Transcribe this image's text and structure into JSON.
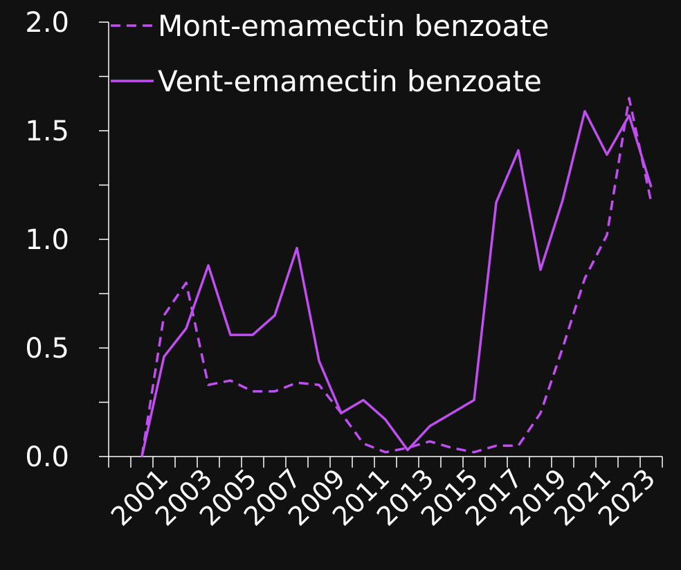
{
  "chart_data": {
    "type": "line",
    "categories": [
      null,
      null,
      "2001",
      null,
      "2003",
      null,
      "2005",
      null,
      "2007",
      null,
      "2009",
      null,
      "2011",
      null,
      "2013",
      null,
      "2015",
      null,
      "2017",
      null,
      "2019",
      null,
      "2021",
      null,
      "2023"
    ],
    "series": [
      {
        "name": "Mont-emamectin benzoate",
        "color": "#bf4fef",
        "dash": true,
        "values": [
          null,
          0,
          0.65,
          0.8,
          0.33,
          0.35,
          0.3,
          0.3,
          0.34,
          0.33,
          0.2,
          0.06,
          0.02,
          0.04,
          0.07,
          0.04,
          0.02,
          0.05,
          0.05,
          0.2,
          0.5,
          0.82,
          1.02,
          1.65,
          1.17
        ]
      },
      {
        "name": "Vent-emamectin benzoate",
        "color": "#bf4fef",
        "dash": false,
        "values": [
          null,
          0,
          0.46,
          0.59,
          0.88,
          0.56,
          0.56,
          0.65,
          0.96,
          0.44,
          0.2,
          0.26,
          0.17,
          0.03,
          0.14,
          0.2,
          0.26,
          1.17,
          1.41,
          0.86,
          1.18,
          1.59,
          1.39,
          1.57,
          1.24
        ]
      }
    ],
    "ylim": [
      0,
      2.0
    ],
    "yticks": [
      {
        "value": 0,
        "label": "0.0"
      },
      {
        "value": 0.5,
        "label": "0.5"
      },
      {
        "value": 1.0,
        "label": "1.0"
      },
      {
        "value": 1.5,
        "label": "1.5"
      },
      {
        "value": 2.0,
        "label": "2.0"
      }
    ],
    "yminor_ticks": [
      0.25,
      0.75,
      1.25,
      1.75
    ],
    "legend": "top-left"
  }
}
